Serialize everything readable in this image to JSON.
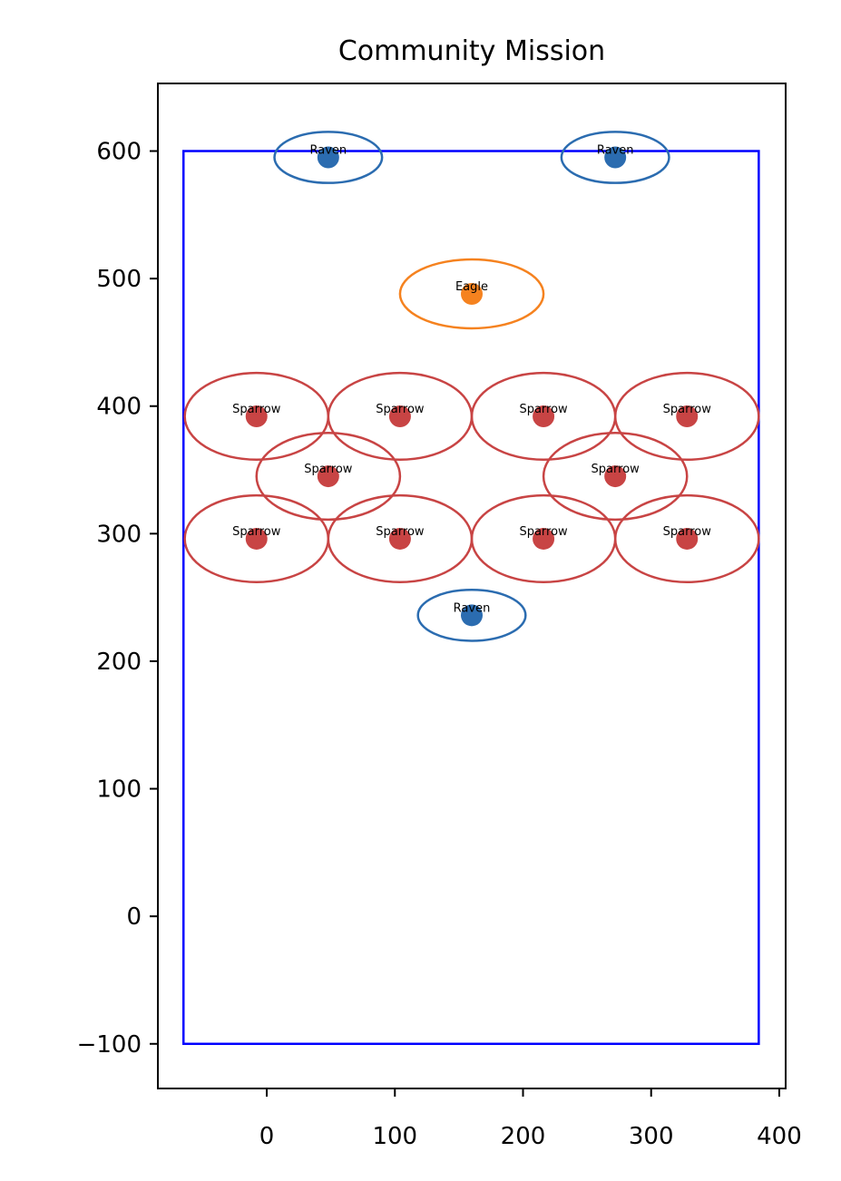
{
  "chart_data": {
    "type": "scatter",
    "title": "Community Mission",
    "xlabel": "",
    "ylabel": "",
    "xlim": [
      -85,
      405
    ],
    "ylim": [
      -135,
      653
    ],
    "x_ticks": [
      0,
      100,
      200,
      300,
      400
    ],
    "y_ticks": [
      -100,
      0,
      100,
      200,
      300,
      400,
      500,
      600
    ],
    "y_tick_labels": [
      "−100",
      "0",
      "100",
      "200",
      "300",
      "400",
      "500",
      "600"
    ],
    "boundary": {
      "x_min": -65,
      "x_max": 384,
      "y_min": -100,
      "y_max": 600,
      "color": "#0000ff"
    },
    "colors": {
      "Raven": "#2b6cb0",
      "Eagle": "#f5821f",
      "Sparrow": "#c84444"
    },
    "points": [
      {
        "label": "Raven",
        "x": 48,
        "y": 595,
        "rx": 42,
        "ry": 20
      },
      {
        "label": "Raven",
        "x": 272,
        "y": 595,
        "rx": 42,
        "ry": 20
      },
      {
        "label": "Eagle",
        "x": 160,
        "y": 488,
        "rx": 56,
        "ry": 27
      },
      {
        "label": "Sparrow",
        "x": -8,
        "y": 392,
        "rx": 56,
        "ry": 34
      },
      {
        "label": "Sparrow",
        "x": 104,
        "y": 392,
        "rx": 56,
        "ry": 34
      },
      {
        "label": "Sparrow",
        "x": 216,
        "y": 392,
        "rx": 56,
        "ry": 34
      },
      {
        "label": "Sparrow",
        "x": 328,
        "y": 392,
        "rx": 56,
        "ry": 34
      },
      {
        "label": "Sparrow",
        "x": 48,
        "y": 345,
        "rx": 56,
        "ry": 34
      },
      {
        "label": "Sparrow",
        "x": 272,
        "y": 345,
        "rx": 56,
        "ry": 34
      },
      {
        "label": "Sparrow",
        "x": -8,
        "y": 296,
        "rx": 56,
        "ry": 34
      },
      {
        "label": "Sparrow",
        "x": 104,
        "y": 296,
        "rx": 56,
        "ry": 34
      },
      {
        "label": "Sparrow",
        "x": 216,
        "y": 296,
        "rx": 56,
        "ry": 34
      },
      {
        "label": "Sparrow",
        "x": 328,
        "y": 296,
        "rx": 56,
        "ry": 34
      },
      {
        "label": "Raven",
        "x": 160,
        "y": 236,
        "rx": 42,
        "ry": 20
      }
    ]
  }
}
